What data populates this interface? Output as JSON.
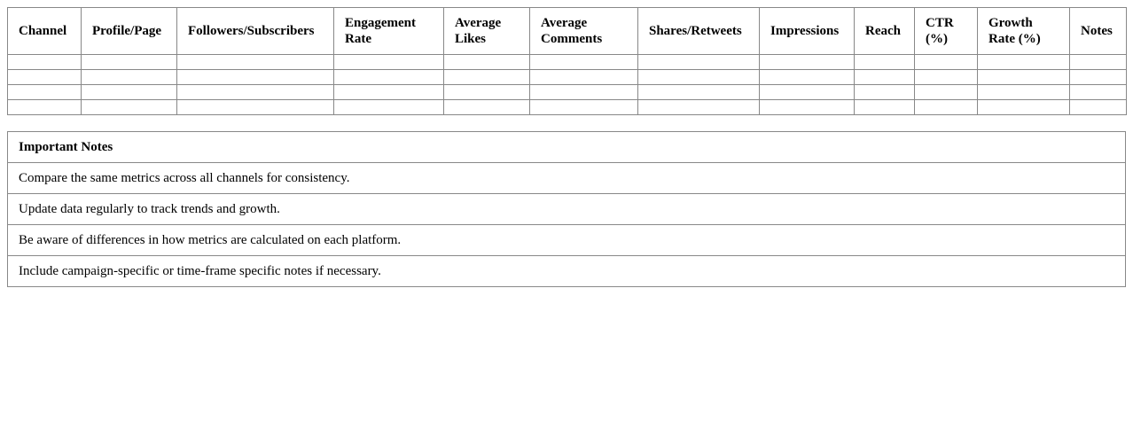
{
  "metrics_table": {
    "headers": [
      "Channel",
      "Profile/Page",
      "Followers/Subscribers",
      "Engagement Rate",
      "Average Likes",
      "Average Comments",
      "Shares/Retweets",
      "Impressions",
      "Reach",
      "CTR (%)",
      "Growth Rate (%)",
      "Notes"
    ],
    "rows": [
      [
        "",
        "",
        "",
        "",
        "",
        "",
        "",
        "",
        "",
        "",
        "",
        ""
      ],
      [
        "",
        "",
        "",
        "",
        "",
        "",
        "",
        "",
        "",
        "",
        "",
        ""
      ],
      [
        "",
        "",
        "",
        "",
        "",
        "",
        "",
        "",
        "",
        "",
        "",
        ""
      ],
      [
        "",
        "",
        "",
        "",
        "",
        "",
        "",
        "",
        "",
        "",
        "",
        ""
      ]
    ]
  },
  "notes_table": {
    "title": "Important Notes",
    "items": [
      "Compare the same metrics across all channels for consistency.",
      "Update data regularly to track trends and growth.",
      "Be aware of differences in how metrics are calculated on each platform.",
      "Include campaign-specific or time-frame specific notes if necessary."
    ]
  }
}
